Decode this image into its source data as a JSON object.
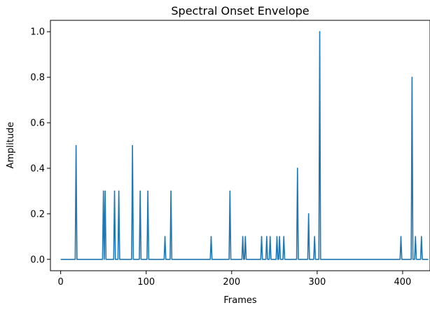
{
  "chart_data": {
    "type": "line",
    "title": "Spectral Onset Envelope",
    "xlabel": "Frames",
    "ylabel": "Amplitude",
    "xlim": [
      -12,
      432
    ],
    "ylim": [
      -0.05,
      1.05
    ],
    "xticks": [
      0,
      100,
      200,
      300,
      400
    ],
    "yticks": [
      0.0,
      0.2,
      0.4,
      0.6,
      0.8,
      1.0
    ],
    "grid": false,
    "legend": "none",
    "colors": {
      "line": "#1f77b4",
      "axis": "#000000",
      "background": "#ffffff"
    },
    "series": [
      {
        "onsets": [
          [
            18,
            0.5
          ],
          [
            50,
            0.3
          ],
          [
            52,
            0.3
          ],
          [
            63,
            0.3
          ],
          [
            68,
            0.3
          ],
          [
            84,
            0.5
          ],
          [
            93,
            0.3
          ],
          [
            102,
            0.3
          ],
          [
            122,
            0.1
          ],
          [
            129,
            0.3
          ],
          [
            176,
            0.1
          ],
          [
            198,
            0.3
          ],
          [
            213,
            0.1
          ],
          [
            216,
            0.1
          ],
          [
            235,
            0.1
          ],
          [
            241,
            0.1
          ],
          [
            245,
            0.1
          ],
          [
            253,
            0.1
          ],
          [
            256,
            0.1
          ],
          [
            261,
            0.1
          ],
          [
            277,
            0.4
          ],
          [
            290,
            0.2
          ],
          [
            297,
            0.1
          ],
          [
            303,
            1.0
          ],
          [
            398,
            0.1
          ],
          [
            411,
            0.8
          ],
          [
            415,
            0.1
          ],
          [
            422,
            0.1
          ]
        ],
        "x_end": 430
      }
    ]
  }
}
